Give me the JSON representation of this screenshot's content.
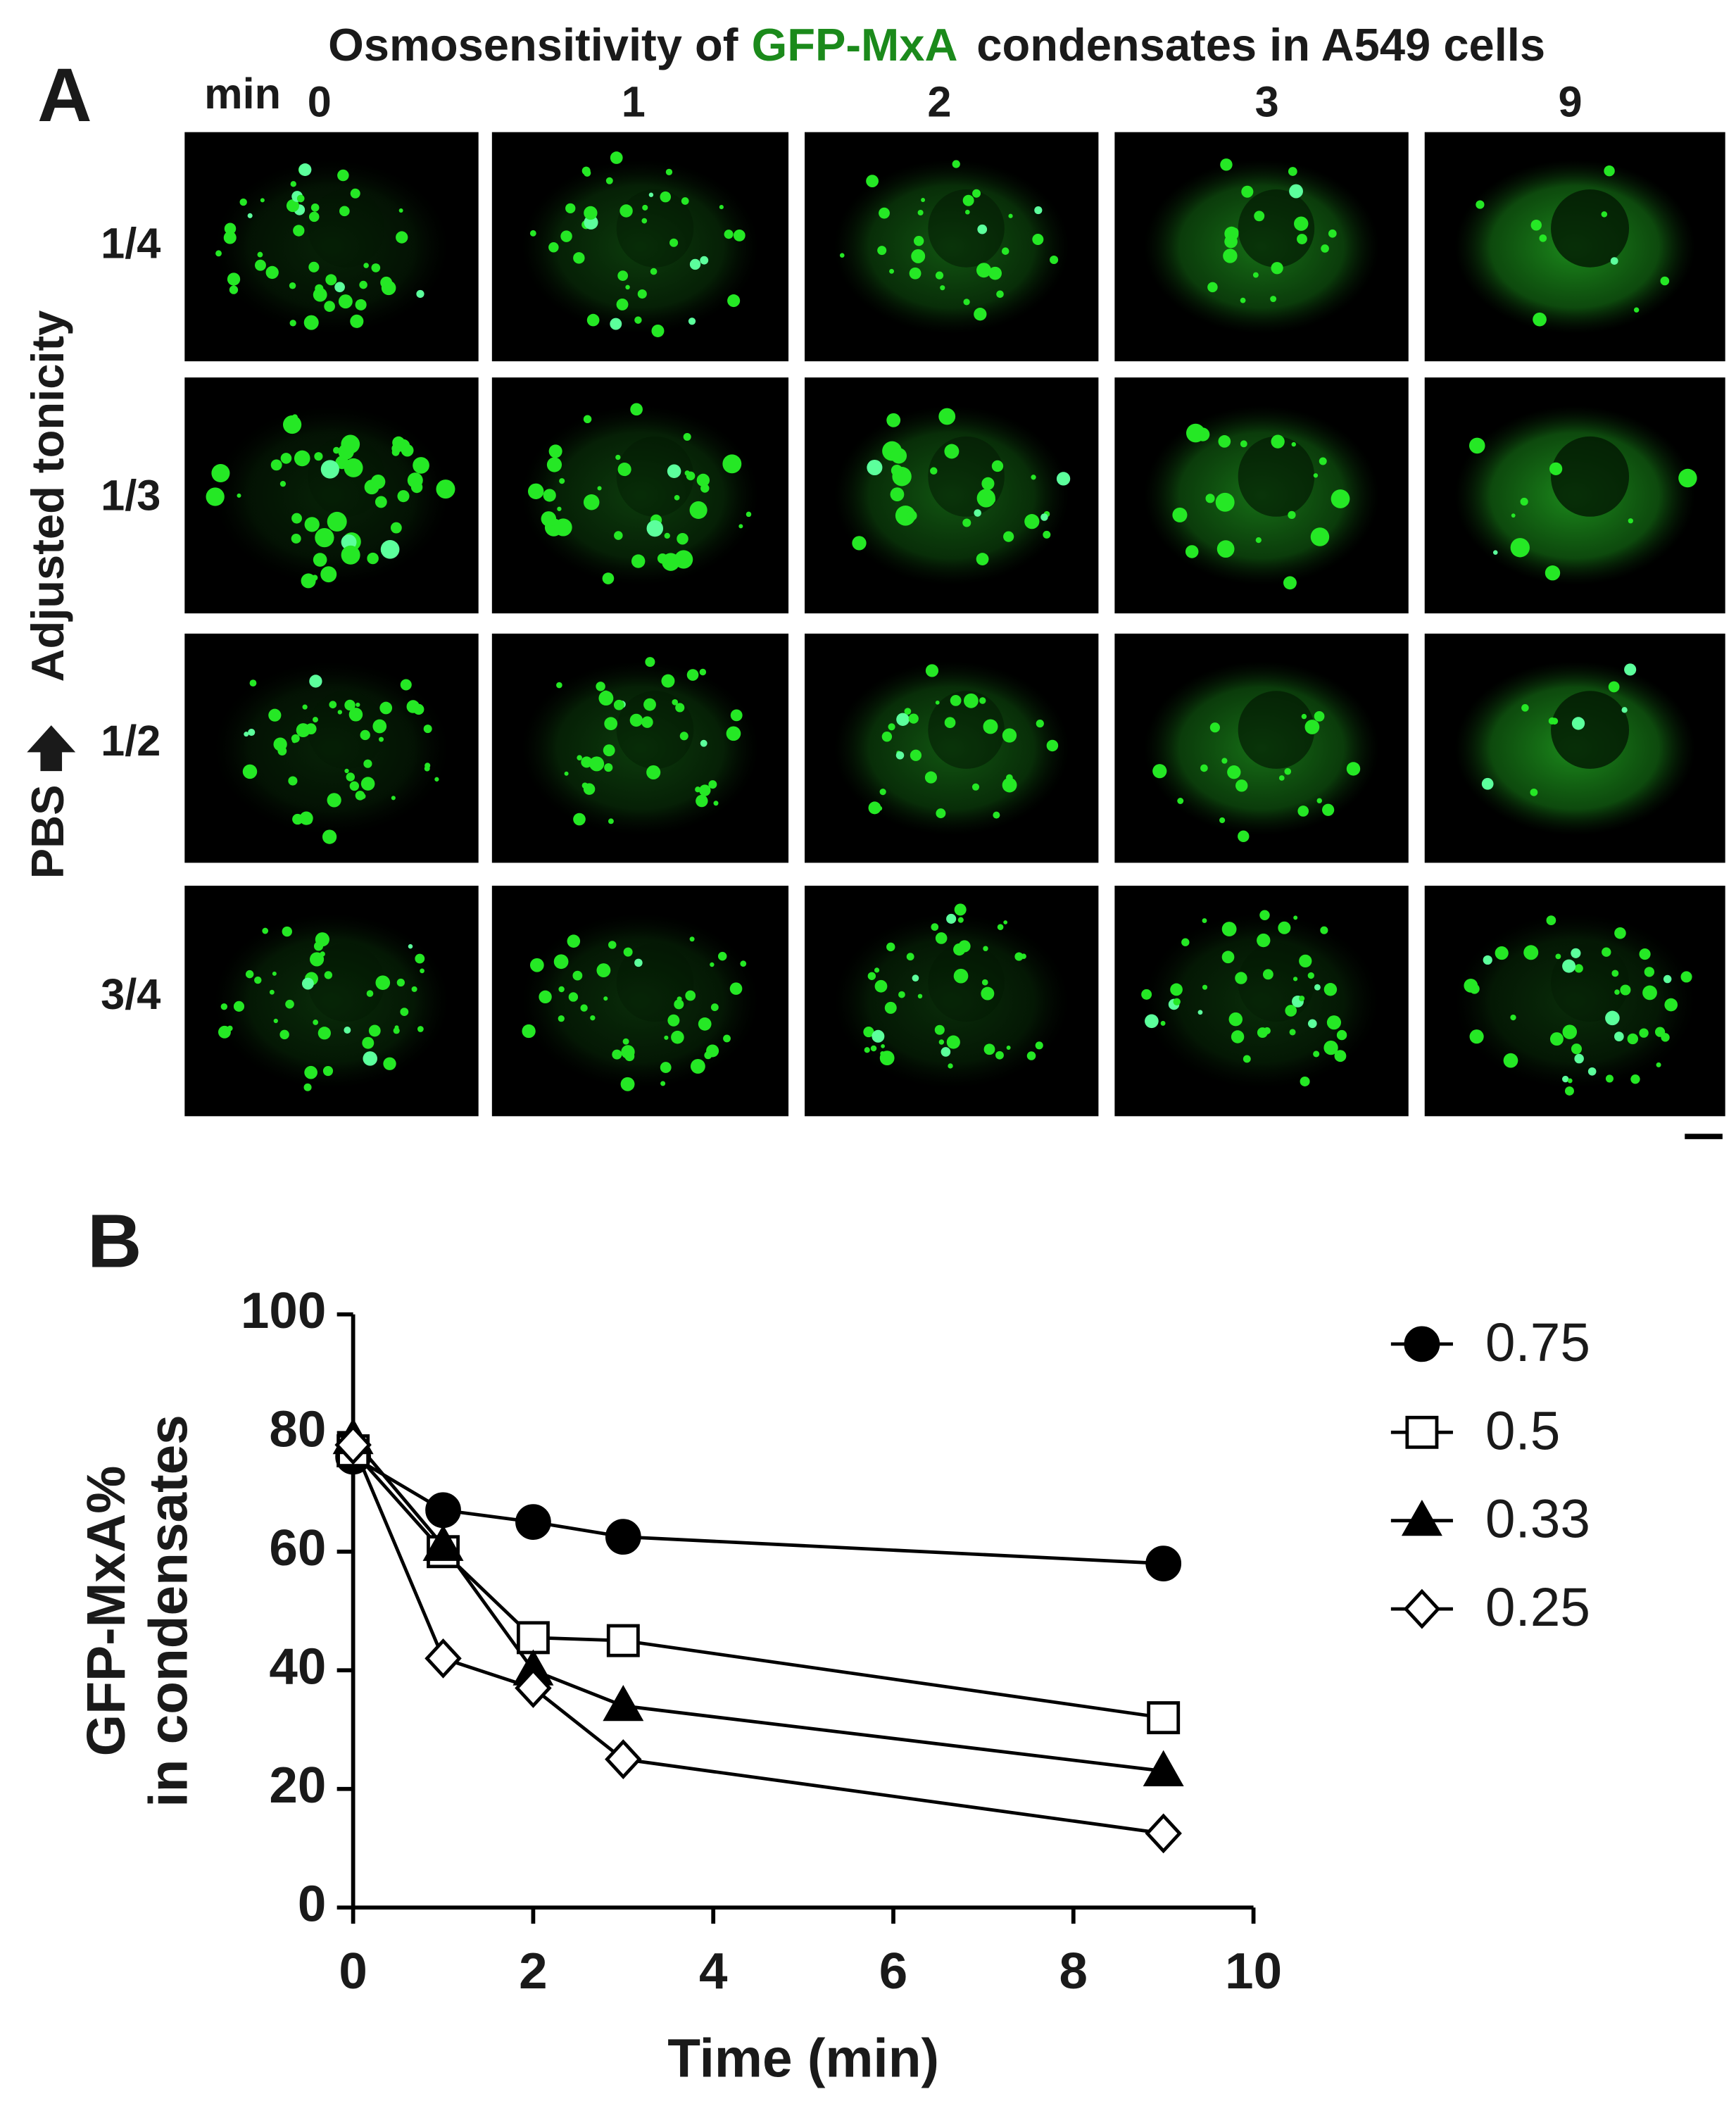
{
  "panel_a": {
    "label": "A",
    "title_parts": [
      "Osmosensitivity of",
      "GFP-MxA",
      "condensates in A549 cells"
    ],
    "time_label": "min",
    "times": [
      "0",
      "1",
      "2",
      "3",
      "9"
    ],
    "row_axis_label": [
      "PBS",
      "Adjusted tonicity"
    ],
    "rows": [
      "1/4",
      "1/3",
      "1/2",
      "3/4"
    ]
  },
  "panel_b_label": "B",
  "chart_data": {
    "type": "line",
    "x_label": "Time (min)",
    "y_label": [
      "GFP-MxA%",
      "in condensates"
    ],
    "x": [
      0,
      1,
      2,
      3,
      9
    ],
    "xlim": [
      0,
      10
    ],
    "xticks": [
      0,
      2,
      4,
      6,
      8,
      10
    ],
    "ylim": [
      0,
      100
    ],
    "yticks": [
      0,
      20,
      40,
      60,
      80,
      100
    ],
    "series": [
      {
        "name": "0.75",
        "color": "#000000",
        "marker": "circle",
        "filled": true,
        "values": [
          76,
          67,
          65,
          62.5,
          58
        ]
      },
      {
        "name": "0.5",
        "color": "#000000",
        "marker": "square",
        "filled": false,
        "values": [
          77,
          60,
          45.5,
          45,
          32
        ]
      },
      {
        "name": "0.33",
        "color": "#000000",
        "marker": "triangle",
        "filled": true,
        "values": [
          79,
          61,
          40,
          34,
          23
        ]
      },
      {
        "name": "0.25",
        "color": "#000000",
        "marker": "diamond",
        "filled": false,
        "values": [
          78,
          42,
          37,
          25,
          12.5
        ]
      }
    ]
  }
}
